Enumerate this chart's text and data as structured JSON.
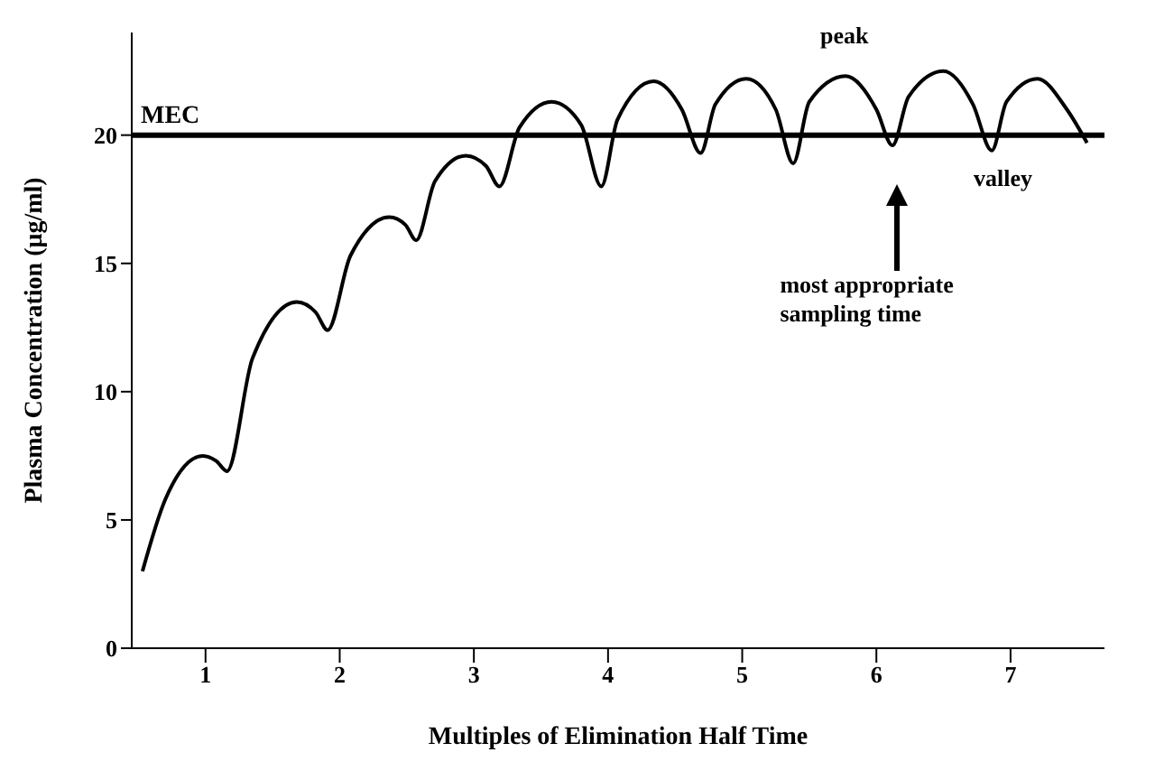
{
  "chart_data": {
    "type": "line",
    "xlabel": "Multiples of Elimination Half Time",
    "ylabel": "Plasma Concentration (μg/ml)",
    "x": [
      0.53,
      0.7,
      0.98,
      1.08,
      1.16,
      1.35,
      1.68,
      1.82,
      1.91,
      2.08,
      2.37,
      2.49,
      2.57,
      2.71,
      2.94,
      3.09,
      3.19,
      3.34,
      3.58,
      3.8,
      3.95,
      4.07,
      4.34,
      4.55,
      4.69,
      4.8,
      5.03,
      5.25,
      5.38,
      5.5,
      5.77,
      6.0,
      6.12,
      6.24,
      6.5,
      6.72,
      6.86,
      6.97,
      7.2,
      7.42,
      7.57
    ],
    "series": [
      {
        "color": "#000000",
        "values": [
          3.0,
          5.8,
          7.5,
          7.3,
          6.9,
          11.3,
          13.5,
          13.1,
          12.4,
          15.3,
          16.8,
          16.5,
          15.9,
          18.2,
          19.2,
          18.8,
          18.0,
          20.3,
          21.3,
          20.4,
          18.0,
          20.6,
          22.1,
          21.0,
          19.3,
          21.2,
          22.2,
          21.0,
          18.9,
          21.3,
          22.3,
          21.0,
          19.6,
          21.5,
          22.5,
          21.2,
          19.4,
          21.3,
          22.2,
          21.0,
          19.7
        ]
      }
    ],
    "xlim": [
      0.45,
      7.7
    ],
    "xticks": [
      1,
      2,
      3,
      4,
      5,
      6,
      7
    ],
    "ylim": [
      0,
      24
    ],
    "yticks": [
      0,
      5,
      10,
      15,
      20
    ],
    "grid": false,
    "ref_lines": [
      {
        "axis": "y",
        "value": 20,
        "label": "MEC",
        "color": "#000000"
      }
    ],
    "annotations": [
      {
        "text": "peak",
        "x": 5.77,
        "y": 22.3
      },
      {
        "text": "valley",
        "x": 6.86,
        "y": 19.4
      },
      "most appropriate sampling time"
    ]
  }
}
